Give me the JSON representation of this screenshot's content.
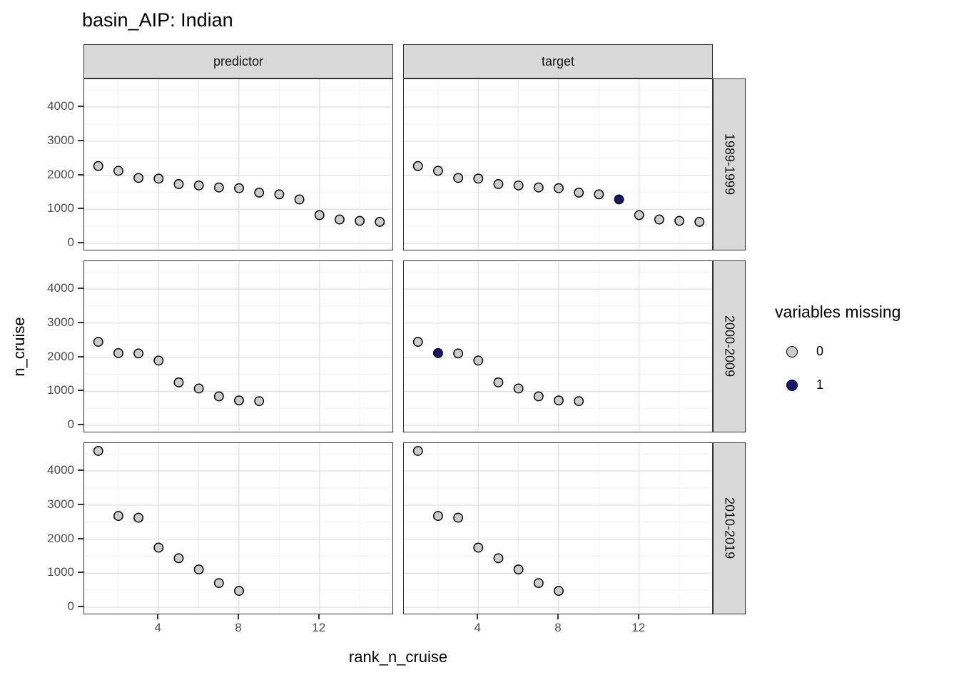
{
  "title": "basin_AIP: Indian",
  "chart_data": {
    "type": "scatter",
    "title": "basin_AIP: Indian",
    "xlabel": "rank_n_cruise",
    "ylabel": "n_cruise",
    "facet_cols": [
      "predictor",
      "target"
    ],
    "x_ticks": [
      4,
      8,
      12
    ],
    "x_minor": [
      2,
      6,
      10,
      14
    ],
    "y_ticks": [
      0,
      1000,
      2000,
      3000,
      4000
    ],
    "y_minor": [
      500,
      1500,
      2500,
      3500,
      4500
    ],
    "x_range": [
      0.3,
      15.7
    ],
    "y_range": [
      -230,
      4820
    ],
    "legend": {
      "title": "variables missing",
      "entries": [
        {
          "label": "0",
          "color": "#cbcbcb"
        },
        {
          "label": "1",
          "color": "#1a1670"
        }
      ]
    },
    "colors": {
      "point_grey": "#cbcbcb",
      "point_navy": "#1a1670",
      "point_stroke": "#000000",
      "grid_major": "#e4e4e4",
      "grid_minor": "#f1f1f1",
      "strip_fill": "#d9d9d9",
      "panel_border": "#333333",
      "tick_text": "#4d4d4d"
    },
    "rows": [
      {
        "label": "1989-1999",
        "x": [
          1,
          2,
          3,
          4,
          5,
          6,
          7,
          8,
          9,
          10,
          11,
          12,
          13,
          14,
          15
        ],
        "values": [
          2270,
          2130,
          1920,
          1900,
          1740,
          1700,
          1640,
          1620,
          1490,
          1440,
          1290,
          830,
          700,
          660,
          630
        ],
        "target_missing_ranks": [
          11
        ]
      },
      {
        "label": "2000-2009",
        "x": [
          1,
          2,
          3,
          4,
          5,
          6,
          7,
          8,
          9
        ],
        "values": [
          2450,
          2120,
          2110,
          1900,
          1260,
          1080,
          850,
          730,
          710
        ],
        "target_missing_ranks": [
          2
        ]
      },
      {
        "label": "2010-2019",
        "x": [
          1,
          2,
          3,
          4,
          5,
          6,
          7,
          8
        ],
        "values": [
          4590,
          2680,
          2630,
          1750,
          1440,
          1110,
          710,
          480
        ],
        "target_missing_ranks": []
      }
    ]
  }
}
